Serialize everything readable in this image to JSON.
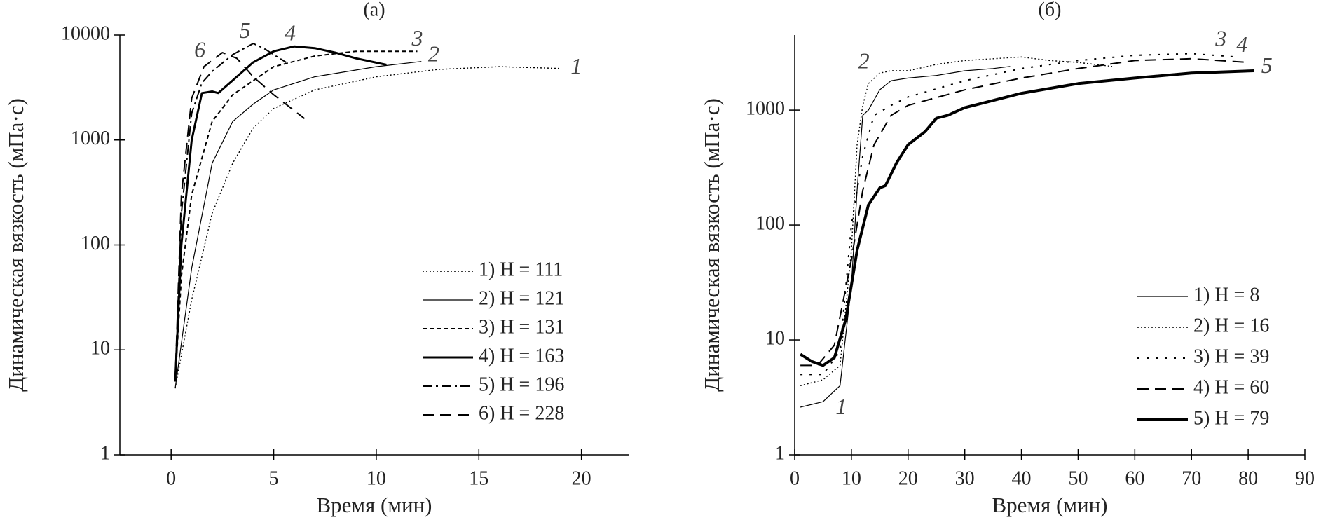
{
  "chart_data": [
    {
      "type": "line",
      "title": "(а)",
      "xlabel": "Время (мин)",
      "ylabel": "Динамическая вязкость (мПа·с)",
      "yscale": "log",
      "xlim": [
        -2.5,
        22.3
      ],
      "ylim": [
        1,
        10000
      ],
      "xticks": [
        0,
        5,
        10,
        15,
        20
      ],
      "yticks": [
        1,
        10,
        100,
        1000,
        10000
      ],
      "legend": "lower right",
      "series": [
        {
          "name": "1) H = 111",
          "style": "dotted",
          "color": "#000000",
          "x": [
            0.2,
            1,
            2,
            3,
            4,
            5,
            7,
            10,
            13,
            16,
            19
          ],
          "values": [
            4.3,
            30,
            200,
            600,
            1300,
            2000,
            3000,
            4000,
            4700,
            5000,
            4800
          ]
        },
        {
          "name": "2) H = 121",
          "style": "thin",
          "color": "#000000",
          "x": [
            0.2,
            1,
            2,
            3,
            4,
            5,
            7,
            10,
            12.2
          ],
          "values": [
            4.3,
            60,
            600,
            1500,
            2200,
            3000,
            4000,
            5000,
            5600
          ]
        },
        {
          "name": "3) H = 131",
          "style": "short-dash",
          "color": "#000000",
          "x": [
            0.2,
            0.5,
            1,
            2,
            3,
            5,
            7,
            9,
            12
          ],
          "values": [
            5,
            50,
            300,
            1500,
            2700,
            5000,
            6300,
            7000,
            7000
          ]
        },
        {
          "name": "4) H = 163",
          "style": "thick",
          "color": "#000000",
          "x": [
            0.2,
            0.5,
            1,
            1.5,
            2,
            2.3,
            3,
            4,
            5,
            6,
            7,
            8,
            9,
            10.5
          ],
          "values": [
            5,
            100,
            1000,
            2800,
            2900,
            2800,
            3700,
            5500,
            7000,
            7800,
            7500,
            6800,
            6000,
            5200
          ]
        },
        {
          "name": "5) H = 196",
          "style": "dash-dot",
          "color": "#000000",
          "x": [
            0.2,
            0.5,
            1,
            1.5,
            2,
            3,
            4,
            4.5,
            5,
            5.6
          ],
          "values": [
            5,
            200,
            1800,
            3500,
            4500,
            6500,
            8300,
            7500,
            6500,
            5500
          ]
        },
        {
          "name": "6) H = 228",
          "style": "dashed",
          "color": "#000000",
          "x": [
            0.2,
            0.5,
            1,
            1.6,
            2.5,
            3.2,
            4,
            5,
            6.5
          ],
          "values": [
            5,
            300,
            2500,
            5000,
            6800,
            6000,
            4000,
            2700,
            1600
          ]
        }
      ],
      "annotations": [
        {
          "text": "1",
          "x": 19.75,
          "y": 4800
        },
        {
          "text": "2",
          "x": 12.8,
          "y": 6300
        },
        {
          "text": "3",
          "x": 12,
          "y": 8900
        },
        {
          "text": "4",
          "x": 5.8,
          "y": 10000
        },
        {
          "text": "5",
          "x": 3.6,
          "y": 10500
        },
        {
          "text": "6",
          "x": 1.4,
          "y": 6900
        }
      ]
    },
    {
      "type": "line",
      "title": "(б)",
      "xlabel": "Время (мин)",
      "ylabel": "Динамическая вязкость (мПа·с)",
      "yscale": "log",
      "xlim": [
        0,
        90
      ],
      "ylim": [
        1,
        4500
      ],
      "xticks": [
        0,
        10,
        20,
        30,
        40,
        50,
        60,
        70,
        80,
        90
      ],
      "yticks": [
        1,
        10,
        100,
        1000
      ],
      "legend": "lower right",
      "series": [
        {
          "name": "1) H = 8",
          "style": "thin",
          "color": "#000000",
          "x": [
            1,
            5,
            8,
            10,
            11,
            12,
            13,
            15,
            17,
            20,
            25,
            30,
            35,
            38
          ],
          "values": [
            2.6,
            2.9,
            4,
            30,
            200,
            900,
            1000,
            1500,
            1800,
            1900,
            2000,
            2200,
            2300,
            2400
          ]
        },
        {
          "name": "2) H = 16",
          "style": "dotted",
          "color": "#000000",
          "x": [
            1,
            5,
            8,
            10,
            11,
            12,
            13,
            15,
            17,
            20,
            25,
            30,
            35,
            40,
            45,
            50,
            56
          ],
          "values": [
            4,
            4.5,
            6,
            60,
            500,
            1100,
            1700,
            2100,
            2200,
            2200,
            2500,
            2700,
            2800,
            2900,
            2700,
            2600,
            2400
          ]
        },
        {
          "name": "3) H = 39",
          "style": "sparse-dot",
          "color": "#000000",
          "x": [
            1,
            5,
            8,
            10,
            12,
            14,
            17,
            20,
            30,
            40,
            50,
            60,
            70,
            78
          ],
          "values": [
            5,
            5,
            8,
            100,
            400,
            900,
            1100,
            1300,
            1800,
            2300,
            2700,
            3000,
            3100,
            2900
          ]
        },
        {
          "name": "4) H = 60",
          "style": "dashed",
          "color": "#000000",
          "x": [
            1,
            4,
            7,
            10,
            12,
            14,
            17,
            20,
            30,
            40,
            50,
            60,
            70,
            80
          ],
          "values": [
            6,
            6,
            9,
            50,
            200,
            500,
            900,
            1100,
            1500,
            1900,
            2300,
            2700,
            2800,
            2600
          ]
        },
        {
          "name": "5) H = 79",
          "style": "heavy",
          "color": "#000000",
          "x": [
            1,
            3,
            5,
            7,
            9,
            11,
            13,
            15,
            16,
            18,
            20,
            23,
            25,
            27,
            30,
            40,
            50,
            60,
            70,
            81
          ],
          "values": [
            7.5,
            6.5,
            6,
            7,
            15,
            60,
            150,
            210,
            220,
            350,
            500,
            650,
            850,
            900,
            1050,
            1400,
            1700,
            1900,
            2100,
            2200
          ]
        }
      ],
      "annotations": [
        {
          "text": "1",
          "x": 8.2,
          "y": 2.5
        },
        {
          "text": "2",
          "x": 12.2,
          "y": 2560
        },
        {
          "text": "3",
          "x": 75.2,
          "y": 4000
        },
        {
          "text": "4",
          "x": 78.9,
          "y": 3550
        },
        {
          "text": "5",
          "x": 83.3,
          "y": 2340
        }
      ]
    }
  ]
}
